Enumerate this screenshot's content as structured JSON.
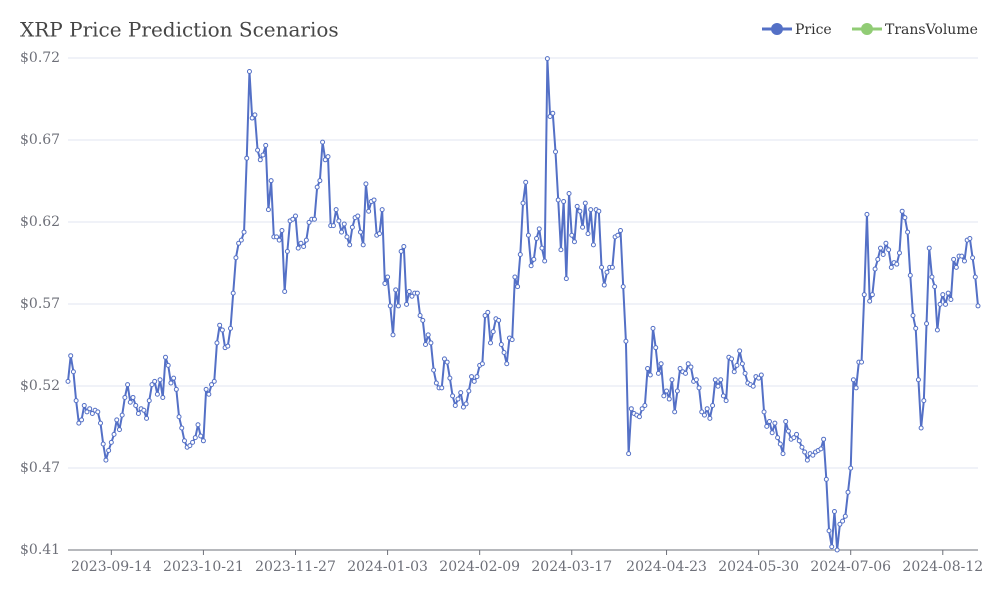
{
  "chart_data": {
    "type": "line",
    "title": "XRP Price Prediction Scenarios",
    "categories": [
      null,
      null,
      null,
      null,
      null,
      null,
      null,
      null,
      null,
      null,
      null,
      null,
      null,
      null,
      null,
      null,
      "2023-09-14",
      null,
      null,
      null,
      null,
      null,
      null,
      null,
      null,
      null,
      null,
      null,
      null,
      null,
      null,
      null,
      null,
      null,
      null,
      null,
      null,
      null,
      null,
      null,
      null,
      null,
      null,
      null,
      null,
      null,
      null,
      null,
      null,
      null,
      "2023-10-21",
      null,
      null,
      null,
      null,
      null,
      null,
      null,
      null,
      null,
      null,
      null,
      null,
      null,
      null,
      null,
      null,
      null,
      null,
      null,
      null,
      null,
      null,
      null,
      null,
      null,
      null,
      null,
      null,
      null,
      null,
      null,
      null,
      null,
      "2023-11-27",
      null,
      null,
      null,
      null,
      null,
      null,
      null,
      null,
      null,
      null,
      null,
      null,
      null,
      null,
      null,
      null,
      null,
      null,
      null,
      null,
      null,
      null,
      null,
      null,
      null,
      null,
      null,
      null,
      null,
      null,
      null,
      null,
      null,
      "2024-01-03",
      null,
      null,
      null,
      null,
      null,
      null,
      null,
      null,
      null,
      null,
      null,
      null,
      null,
      null,
      null,
      null,
      null,
      null,
      null,
      null,
      null,
      null,
      null,
      null,
      null,
      null,
      null,
      null,
      null,
      null,
      null,
      null,
      null,
      "2024-02-09",
      null,
      null,
      null,
      null,
      null,
      null,
      null,
      null,
      null,
      null,
      null,
      null,
      null,
      null,
      null,
      null,
      null,
      null,
      null,
      null,
      null,
      null,
      null,
      null,
      null,
      null,
      null,
      null,
      null,
      null,
      null,
      null,
      null,
      "2024-03-17",
      null,
      null,
      null,
      null,
      null,
      null,
      null,
      null,
      null,
      null,
      null,
      null,
      null,
      null,
      null,
      null,
      null,
      null,
      null,
      null,
      null,
      null,
      null,
      null,
      null,
      null,
      null,
      null,
      null,
      null,
      null,
      null,
      null,
      null,
      "2024-04-23",
      null,
      null,
      null,
      null,
      null,
      null,
      null,
      null,
      null,
      null,
      null,
      null,
      null,
      null,
      null,
      null,
      null,
      null,
      null,
      null,
      null,
      null,
      null,
      null,
      null,
      null,
      null,
      null,
      null,
      null,
      null,
      null,
      null,
      "2024-05-30",
      null,
      null,
      null,
      null,
      null,
      null,
      null,
      null,
      null,
      null,
      null,
      null,
      null,
      null,
      null,
      null,
      null,
      null,
      null,
      null,
      null,
      null,
      null,
      null,
      null,
      null,
      null,
      null,
      null,
      null,
      null,
      null,
      null,
      "2024-07-06",
      null,
      null,
      null,
      null,
      null,
      null,
      null,
      null,
      null,
      null,
      null,
      null,
      null,
      null,
      null,
      null,
      null,
      null,
      null,
      null,
      null,
      null,
      null,
      null,
      null,
      null,
      null,
      null,
      null,
      null,
      null,
      null,
      null,
      "2024-08-12",
      null,
      null,
      null,
      null,
      null,
      null,
      null,
      null,
      null,
      null,
      null,
      null,
      null
    ],
    "series": [
      {
        "name": "Price",
        "color": "#5470c6",
        "values": [
          0.519,
          0.535,
          0.525,
          0.507,
          0.493,
          0.495,
          0.504,
          0.5,
          0.502,
          0.499,
          0.501,
          0.5,
          0.493,
          0.48,
          0.47,
          0.476,
          0.481,
          0.486,
          0.495,
          0.489,
          0.498,
          0.509,
          0.517,
          0.506,
          0.509,
          0.504,
          0.499,
          0.502,
          0.501,
          0.496,
          0.507,
          0.517,
          0.519,
          0.511,
          0.52,
          0.509,
          0.534,
          0.529,
          0.518,
          0.521,
          0.514,
          0.497,
          0.49,
          0.482,
          0.478,
          0.479,
          0.481,
          0.484,
          0.492,
          0.485,
          0.482,
          0.514,
          0.511,
          0.517,
          0.519,
          0.543,
          0.554,
          0.551,
          0.54,
          0.541,
          0.552,
          0.574,
          0.596,
          0.605,
          0.607,
          0.612,
          0.658,
          0.712,
          0.683,
          0.685,
          0.663,
          0.657,
          0.66,
          0.666,
          0.626,
          0.644,
          0.609,
          0.609,
          0.607,
          0.613,
          0.575,
          0.6,
          0.619,
          0.62,
          0.622,
          0.602,
          0.605,
          0.603,
          0.607,
          0.618,
          0.62,
          0.62,
          0.64,
          0.644,
          0.668,
          0.657,
          0.659,
          0.616,
          0.616,
          0.626,
          0.619,
          0.612,
          0.617,
          0.609,
          0.604,
          0.615,
          0.621,
          0.622,
          0.612,
          0.604,
          0.642,
          0.625,
          0.631,
          0.632,
          0.61,
          0.611,
          0.626,
          0.58,
          0.584,
          0.566,
          0.548,
          0.576,
          0.566,
          0.6,
          0.603,
          0.567,
          0.575,
          0.572,
          0.574,
          0.574,
          0.56,
          0.557,
          0.542,
          0.548,
          0.543,
          0.526,
          0.518,
          0.515,
          0.515,
          0.533,
          0.531,
          0.521,
          0.51,
          0.504,
          0.508,
          0.512,
          0.503,
          0.505,
          0.513,
          0.522,
          0.519,
          0.522,
          0.529,
          0.53,
          0.56,
          0.562,
          0.543,
          0.55,
          0.558,
          0.557,
          0.542,
          0.537,
          0.53,
          0.546,
          0.545,
          0.584,
          0.578,
          0.598,
          0.63,
          0.643,
          0.61,
          0.591,
          0.595,
          0.608,
          0.614,
          0.602,
          0.594,
          0.72,
          0.684,
          0.686,
          0.662,
          0.632,
          0.601,
          0.631,
          0.583,
          0.636,
          0.61,
          0.606,
          0.628,
          0.625,
          0.615,
          0.63,
          0.611,
          0.626,
          0.604,
          0.626,
          0.625,
          0.59,
          0.579,
          0.587,
          0.59,
          0.59,
          0.609,
          0.61,
          0.613,
          0.578,
          0.544,
          0.474,
          0.502,
          0.499,
          0.498,
          0.497,
          0.502,
          0.504,
          0.527,
          0.523,
          0.552,
          0.54,
          0.524,
          0.53,
          0.51,
          0.513,
          0.508,
          0.52,
          0.5,
          0.513,
          0.527,
          0.525,
          0.524,
          0.53,
          0.528,
          0.519,
          0.52,
          0.515,
          0.5,
          0.498,
          0.502,
          0.496,
          0.504,
          0.52,
          0.516,
          0.52,
          0.51,
          0.507,
          0.534,
          0.533,
          0.525,
          0.529,
          0.538,
          0.53,
          0.524,
          0.518,
          0.517,
          0.516,
          0.522,
          0.521,
          0.523,
          0.5,
          0.491,
          0.494,
          0.487,
          0.493,
          0.484,
          0.48,
          0.474,
          0.494,
          0.488,
          0.483,
          0.484,
          0.486,
          0.482,
          0.478,
          0.475,
          0.47,
          0.474,
          0.473,
          0.475,
          0.476,
          0.477,
          0.483,
          0.458,
          0.426,
          0.416,
          0.438,
          0.414,
          0.43,
          0.432,
          0.435,
          0.45,
          0.465,
          0.52,
          0.515,
          0.531,
          0.531,
          0.573,
          0.623,
          0.569,
          0.573,
          0.589,
          0.595,
          0.602,
          0.598,
          0.605,
          0.601,
          0.59,
          0.593,
          0.592,
          0.599,
          0.625,
          0.621,
          0.612,
          0.585,
          0.56,
          0.552,
          0.52,
          0.49,
          0.507,
          0.555,
          0.602,
          0.584,
          0.578,
          0.551,
          0.567,
          0.573,
          0.567,
          0.574,
          0.57,
          0.595,
          0.59,
          0.597,
          0.597,
          0.594,
          0.607,
          0.608,
          0.596,
          0.584,
          0.566
        ]
      },
      {
        "name": "TransVolume",
        "color": "#91cc75"
      }
    ],
    "ylim": [
      0.414,
      0.7204
    ],
    "yticks": [
      {
        "value": 0.414,
        "label": "$0.41"
      },
      {
        "value": 0.46507,
        "label": "$0.47"
      },
      {
        "value": 0.51613,
        "label": "$0.52"
      },
      {
        "value": 0.5672,
        "label": "$0.57"
      },
      {
        "value": 0.61827,
        "label": "$0.62"
      },
      {
        "value": 0.66933,
        "label": "$0.67"
      },
      {
        "value": 0.7204,
        "label": "$0.72"
      }
    ],
    "grid": true
  }
}
